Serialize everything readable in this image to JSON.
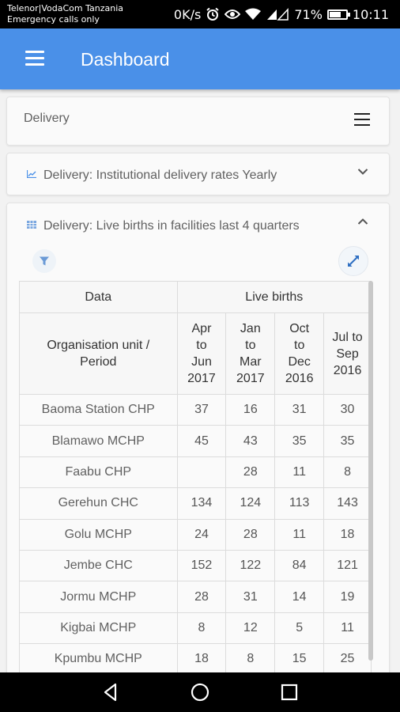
{
  "status_bar": {
    "carrier_line1": "Telenor|VodaCom Tanzania",
    "carrier_line2": "Emergency calls only",
    "speed": "0K/s",
    "battery": "71%",
    "battery_level": 0.71,
    "time": "10:11",
    "icons": [
      "alarm-icon",
      "eye-icon",
      "wifi-icon",
      "signal-icon",
      "battery-icon"
    ]
  },
  "app_bar": {
    "title": "Dashboard",
    "menu_icon": "menu-icon"
  },
  "section": {
    "title": "Delivery",
    "menu_icon": "hamburger-icon"
  },
  "items": [
    {
      "icon": "line-chart-icon",
      "title": "Delivery: Institutional delivery rates Yearly",
      "state": "collapsed"
    },
    {
      "icon": "table-icon",
      "title": "Delivery: Live births in facilities last 4 quarters",
      "state": "expanded"
    }
  ],
  "toolbar": {
    "filter_icon": "filter-icon",
    "expand_icon": "fullscreen-icon"
  },
  "table": {
    "header_data": "Data",
    "header_group": "Live births",
    "row_header": "Organisation unit / Period",
    "periods": [
      "Apr to Jun 2017",
      "Jan to Mar 2017",
      "Oct to Dec 2016",
      "Jul to Sep 2016"
    ],
    "period_lines": [
      [
        "Apr",
        "to",
        "Jun",
        "2017"
      ],
      [
        "Jan",
        "to",
        "Mar",
        "2017"
      ],
      [
        "Oct",
        "to",
        "Dec",
        "2016"
      ],
      [
        "Jul to",
        "Sep",
        "2016"
      ]
    ],
    "rows": [
      {
        "org": "Baoma Station CHP",
        "values": [
          "37",
          "16",
          "31",
          "30"
        ]
      },
      {
        "org": "Blamawo MCHP",
        "values": [
          "45",
          "43",
          "35",
          "35"
        ]
      },
      {
        "org": "Faabu CHP",
        "values": [
          "",
          "28",
          "11",
          "8"
        ]
      },
      {
        "org": "Gerehun CHC",
        "values": [
          "134",
          "124",
          "113",
          "143"
        ]
      },
      {
        "org": "Golu MCHP",
        "values": [
          "24",
          "28",
          "11",
          "18"
        ]
      },
      {
        "org": "Jembe CHC",
        "values": [
          "152",
          "122",
          "84",
          "121"
        ]
      },
      {
        "org": "Jormu MCHP",
        "values": [
          "28",
          "31",
          "14",
          "19"
        ]
      },
      {
        "org": "Kigbai MCHP",
        "values": [
          "8",
          "12",
          "5",
          "11"
        ]
      },
      {
        "org": "Kpumbu MCHP",
        "values": [
          "18",
          "8",
          "15",
          "25"
        ]
      }
    ]
  },
  "nav_bar": {
    "back_icon": "back-icon",
    "home_icon": "home-icon",
    "recents_icon": "recents-icon"
  }
}
